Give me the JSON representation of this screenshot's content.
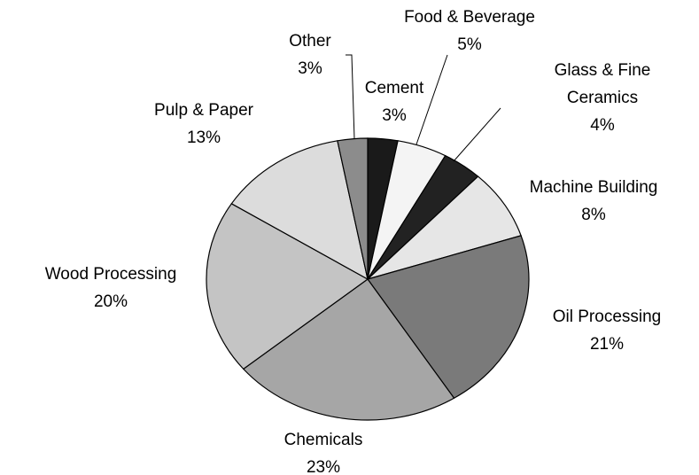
{
  "chart_data": {
    "type": "pie",
    "categories": [
      "Cement",
      "Food & Beverage",
      "Glass & Fine Ceramics",
      "Machine Building",
      "Oil Processing",
      "Chemicals",
      "Wood Processing",
      "Pulp & Paper",
      "Other"
    ],
    "values": [
      3,
      5,
      4,
      8,
      21,
      23,
      20,
      13,
      3
    ],
    "value_labels": [
      "3%",
      "5%",
      "4%",
      "8%",
      "21%",
      "23%",
      "20%",
      "13%",
      "3%"
    ],
    "colors": [
      "#1a1a1a",
      "#f4f4f4",
      "#222222",
      "#e6e6e6",
      "#7a7a7a",
      "#a6a6a6",
      "#c4c4c4",
      "#dcdcdc",
      "#8c8c8c"
    ]
  }
}
